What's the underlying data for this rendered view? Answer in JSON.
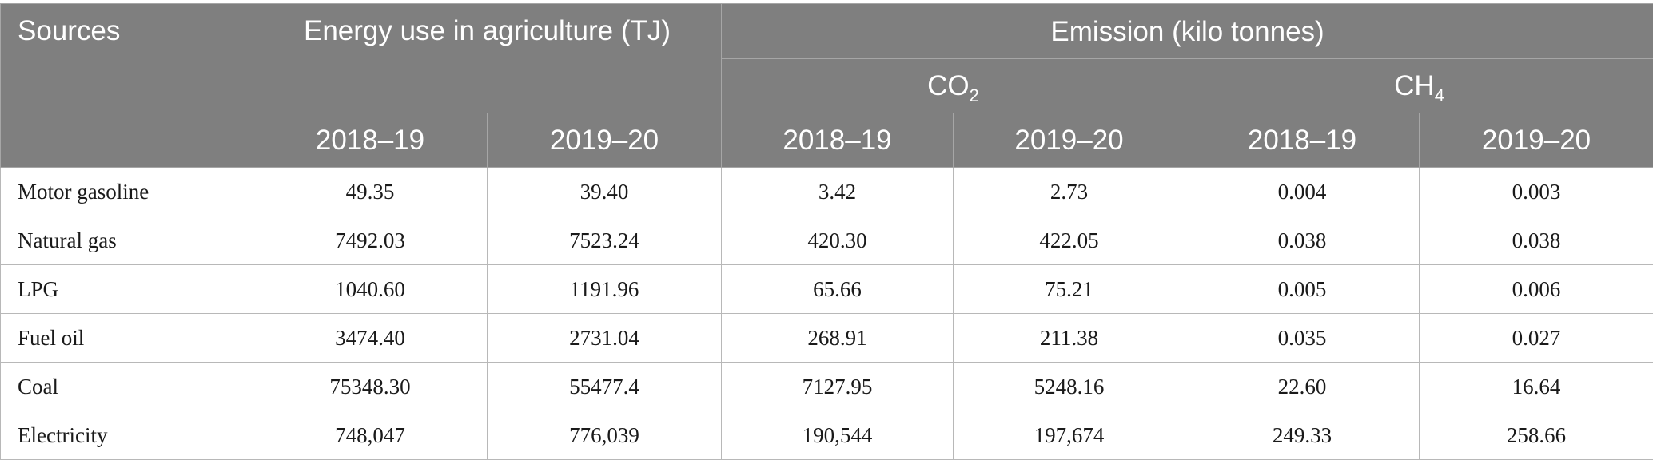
{
  "header": {
    "sources": "Sources",
    "energy_use": "Energy use in agriculture (TJ)",
    "emission": "Emission (kilo tonnes)",
    "co2_base": "CO",
    "co2_sub": "2",
    "ch4_base": "CH",
    "ch4_sub": "4",
    "years": [
      "2018–19",
      "2019–20",
      "2018–19",
      "2019–20",
      "2018–19",
      "2019–20"
    ]
  },
  "rows": [
    {
      "source": "Motor gasoline",
      "values": [
        "49.35",
        "39.40",
        "3.42",
        "2.73",
        "0.004",
        "0.003"
      ]
    },
    {
      "source": "Natural gas",
      "values": [
        "7492.03",
        "7523.24",
        "420.30",
        "422.05",
        "0.038",
        "0.038"
      ]
    },
    {
      "source": "LPG",
      "values": [
        "1040.60",
        "1191.96",
        "65.66",
        "75.21",
        "0.005",
        "0.006"
      ]
    },
    {
      "source": "Fuel oil",
      "values": [
        "3474.40",
        "2731.04",
        "268.91",
        "211.38",
        "0.035",
        "0.027"
      ]
    },
    {
      "source": "Coal",
      "values": [
        "75348.30",
        "55477.4",
        "7127.95",
        "5248.16",
        "22.60",
        "16.64"
      ]
    },
    {
      "source": "Electricity",
      "values": [
        "748,047",
        "776,039",
        "190,544",
        "197,674",
        "249.33",
        "258.66"
      ]
    }
  ]
}
